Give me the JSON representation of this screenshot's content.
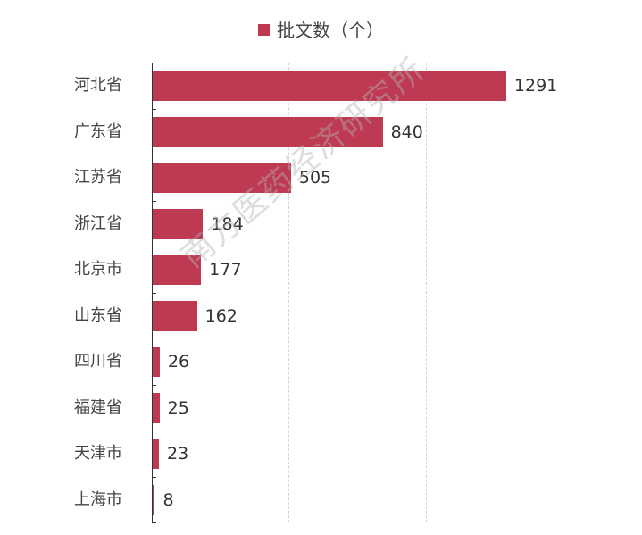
{
  "chart_data": {
    "type": "bar",
    "orientation": "horizontal",
    "title": "",
    "legend": [
      "批文数（个）"
    ],
    "legend_position": "top",
    "categories": [
      "河北省",
      "广东省",
      "江苏省",
      "浙江省",
      "北京市",
      "山东省",
      "四川省",
      "福建省",
      "天津市",
      "上海市"
    ],
    "series": [
      {
        "name": "批文数（个）",
        "values": [
          1291,
          840,
          505,
          184,
          177,
          162,
          26,
          25,
          23,
          8
        ],
        "color": "#BE3A52"
      }
    ],
    "xlabel": "",
    "ylabel": "",
    "xlim": [
      0,
      1500
    ],
    "x_gridlines": [
      500,
      1000,
      1500
    ],
    "grid": true,
    "x_tick_labels_visible": false,
    "data_labels": true
  },
  "legend": {
    "label": "批文数（个）",
    "color": "#BE3A52"
  },
  "watermark": "南方医药经济研究所"
}
